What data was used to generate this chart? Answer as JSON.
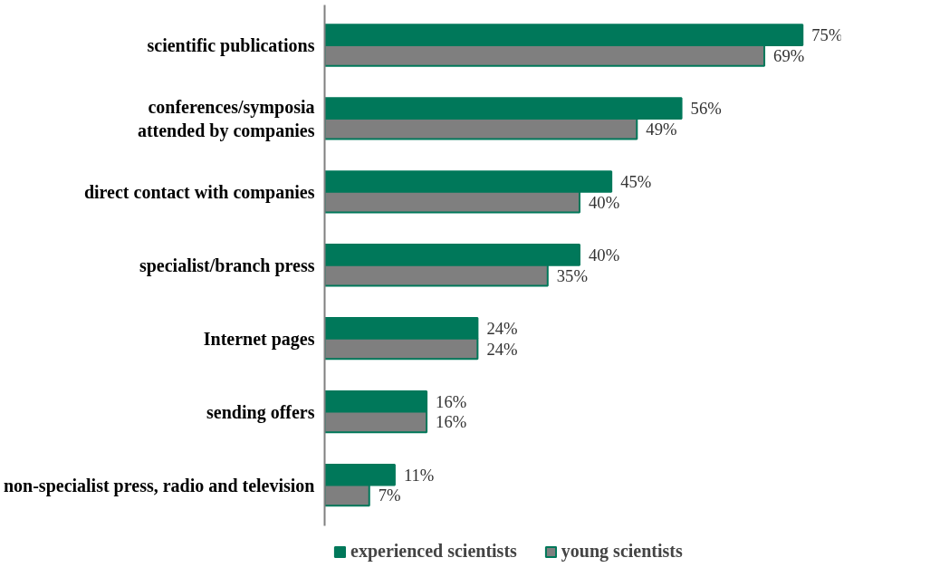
{
  "chart_data": {
    "type": "bar",
    "orientation": "horizontal",
    "categories": [
      "scientific publications",
      "conferences/symposia\nattended by companies",
      "direct contact with companies",
      "specialist/branch press",
      "Internet pages",
      "sending offers",
      "non-specialist press, radio and television"
    ],
    "series": [
      {
        "name": "experienced scientists",
        "color": "#00785a",
        "values": [
          75,
          56,
          45,
          40,
          24,
          16,
          11
        ],
        "value_labels": [
          "75%",
          "56%",
          "45%",
          "40%",
          "24%",
          "16%",
          "11%"
        ]
      },
      {
        "name": "young scientists",
        "color": "#7f7f7f",
        "values": [
          69,
          49,
          40,
          35,
          24,
          16,
          7
        ],
        "value_labels": [
          "69%",
          "49%",
          "40%",
          "35%",
          "24%",
          "16%",
          "7%"
        ]
      }
    ],
    "tick_labels": "y",
    "grid": false,
    "legend": "bottom"
  }
}
